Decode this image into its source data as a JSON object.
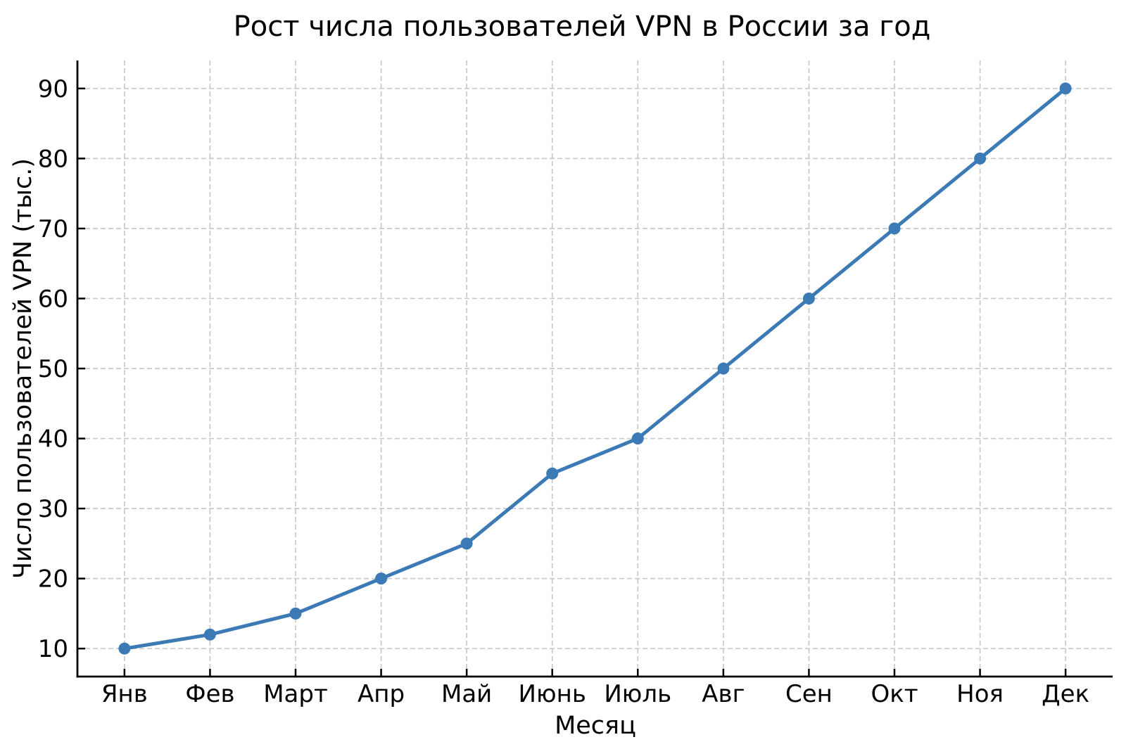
{
  "chart_data": {
    "type": "line",
    "title": "Рост числа пользователей VPN в России за год",
    "xlabel": "Месяц",
    "ylabel": "Число пользователей VPN (тыс.)",
    "categories": [
      "Янв",
      "Фев",
      "Март",
      "Апр",
      "Май",
      "Июнь",
      "Июль",
      "Авг",
      "Сен",
      "Окт",
      "Ноя",
      "Дек"
    ],
    "values": [
      10,
      12,
      15,
      20,
      25,
      35,
      40,
      50,
      60,
      70,
      80,
      90
    ],
    "yticks": [
      10,
      20,
      30,
      40,
      50,
      60,
      70,
      80,
      90
    ],
    "ylim": [
      6,
      94
    ],
    "xlim": [
      -0.55,
      11.55
    ],
    "grid": true,
    "grid_style": "dashed",
    "legend": "none",
    "marker": "circle"
  },
  "colors": {
    "line": "#3c7ab5",
    "marker": "#3c7ab5",
    "grid": "#c9c9c9",
    "axis": "#000000",
    "text": "#000000",
    "background": "#ffffff"
  }
}
